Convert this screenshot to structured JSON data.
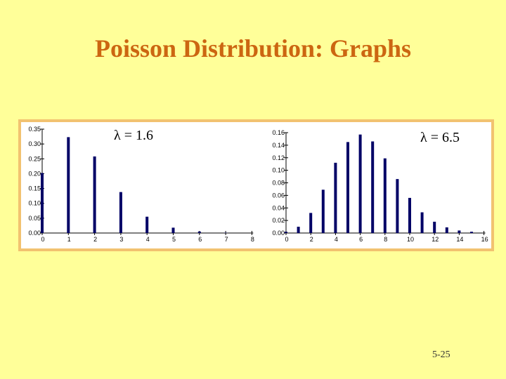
{
  "slide": {
    "title": "Poisson Distribution: Graphs",
    "page_number": "5-25"
  },
  "colors": {
    "background": "#ffff99",
    "title": "#cc6611",
    "panel_border": "#f2c270",
    "bar": "#000066"
  },
  "chart_data": [
    {
      "type": "bar",
      "annotation": "λ = 1.6",
      "x": [
        0,
        1,
        2,
        3,
        4,
        5,
        6,
        7,
        8
      ],
      "values": [
        0.202,
        0.323,
        0.258,
        0.138,
        0.055,
        0.018,
        0.005,
        0.001,
        0.0
      ],
      "ylim": [
        0,
        0.35
      ],
      "yticks": [
        "0.00",
        "0.05",
        "0.10",
        "0.15",
        "0.20",
        "0.25",
        "0.30",
        "0.35"
      ],
      "xticks": [
        "0",
        "1",
        "2",
        "3",
        "4",
        "5",
        "6",
        "7",
        "8"
      ],
      "grid": false,
      "legend": "none"
    },
    {
      "type": "bar",
      "annotation": "λ = 6.5",
      "x": [
        0,
        1,
        2,
        3,
        4,
        5,
        6,
        7,
        8,
        9,
        10,
        11,
        12,
        13,
        14,
        15
      ],
      "values": [
        0.002,
        0.01,
        0.032,
        0.069,
        0.112,
        0.145,
        0.157,
        0.146,
        0.119,
        0.086,
        0.056,
        0.033,
        0.018,
        0.009,
        0.004,
        0.002
      ],
      "ylim": [
        0,
        0.16
      ],
      "yticks": [
        "0.00",
        "0.02",
        "0.04",
        "0.06",
        "0.08",
        "0.10",
        "0.12",
        "0.14",
        "0.16"
      ],
      "xticks": [
        "0",
        "2",
        "4",
        "6",
        "8",
        "10",
        "12",
        "14",
        "16"
      ],
      "grid": false,
      "legend": "none"
    }
  ]
}
